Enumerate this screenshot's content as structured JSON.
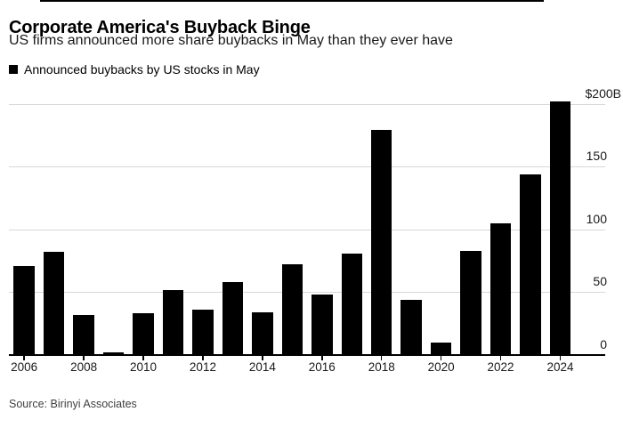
{
  "header": {
    "title": "Corporate America's Buyback Binge",
    "subtitle": "US firms announced more share buybacks in May than they ever have"
  },
  "legend": {
    "label": "Announced buybacks by US stocks in May",
    "marker_color": "#000000"
  },
  "footer": {
    "source": "Source: Birinyi Associates"
  },
  "chart_data": {
    "type": "bar",
    "title": "Corporate America's Buyback Binge",
    "subtitle": "US firms announced more share buybacks in May than they ever have",
    "legend_entries": [
      "Announced buybacks by US stocks in May"
    ],
    "legend_position": "top-left",
    "unit": "billions of US dollars",
    "categories": [
      2006,
      2007,
      2008,
      2009,
      2010,
      2011,
      2012,
      2013,
      2014,
      2015,
      2016,
      2017,
      2018,
      2019,
      2020,
      2021,
      2022,
      2023,
      2024
    ],
    "values": [
      71,
      82,
      32,
      2,
      33,
      52,
      36,
      58,
      34,
      72,
      48,
      81,
      179,
      44,
      10,
      83,
      105,
      144,
      202
    ],
    "x_axis": {
      "tick_labels": [
        "2006",
        "2008",
        "2010",
        "2012",
        "2014",
        "2016",
        "2018",
        "2020",
        "2022",
        "2024"
      ]
    },
    "y_axis": {
      "range": [
        0,
        200
      ],
      "ticks": [
        {
          "value": 200,
          "label": "$200B"
        },
        {
          "value": 150,
          "label": "150"
        },
        {
          "value": 100,
          "label": "100"
        },
        {
          "value": 50,
          "label": "50"
        },
        {
          "value": 0,
          "label": "0"
        }
      ]
    },
    "grid": true,
    "bar_color": "#000000",
    "grid_color": "#d8d8d8",
    "source": "Source: Birinyi Associates"
  }
}
